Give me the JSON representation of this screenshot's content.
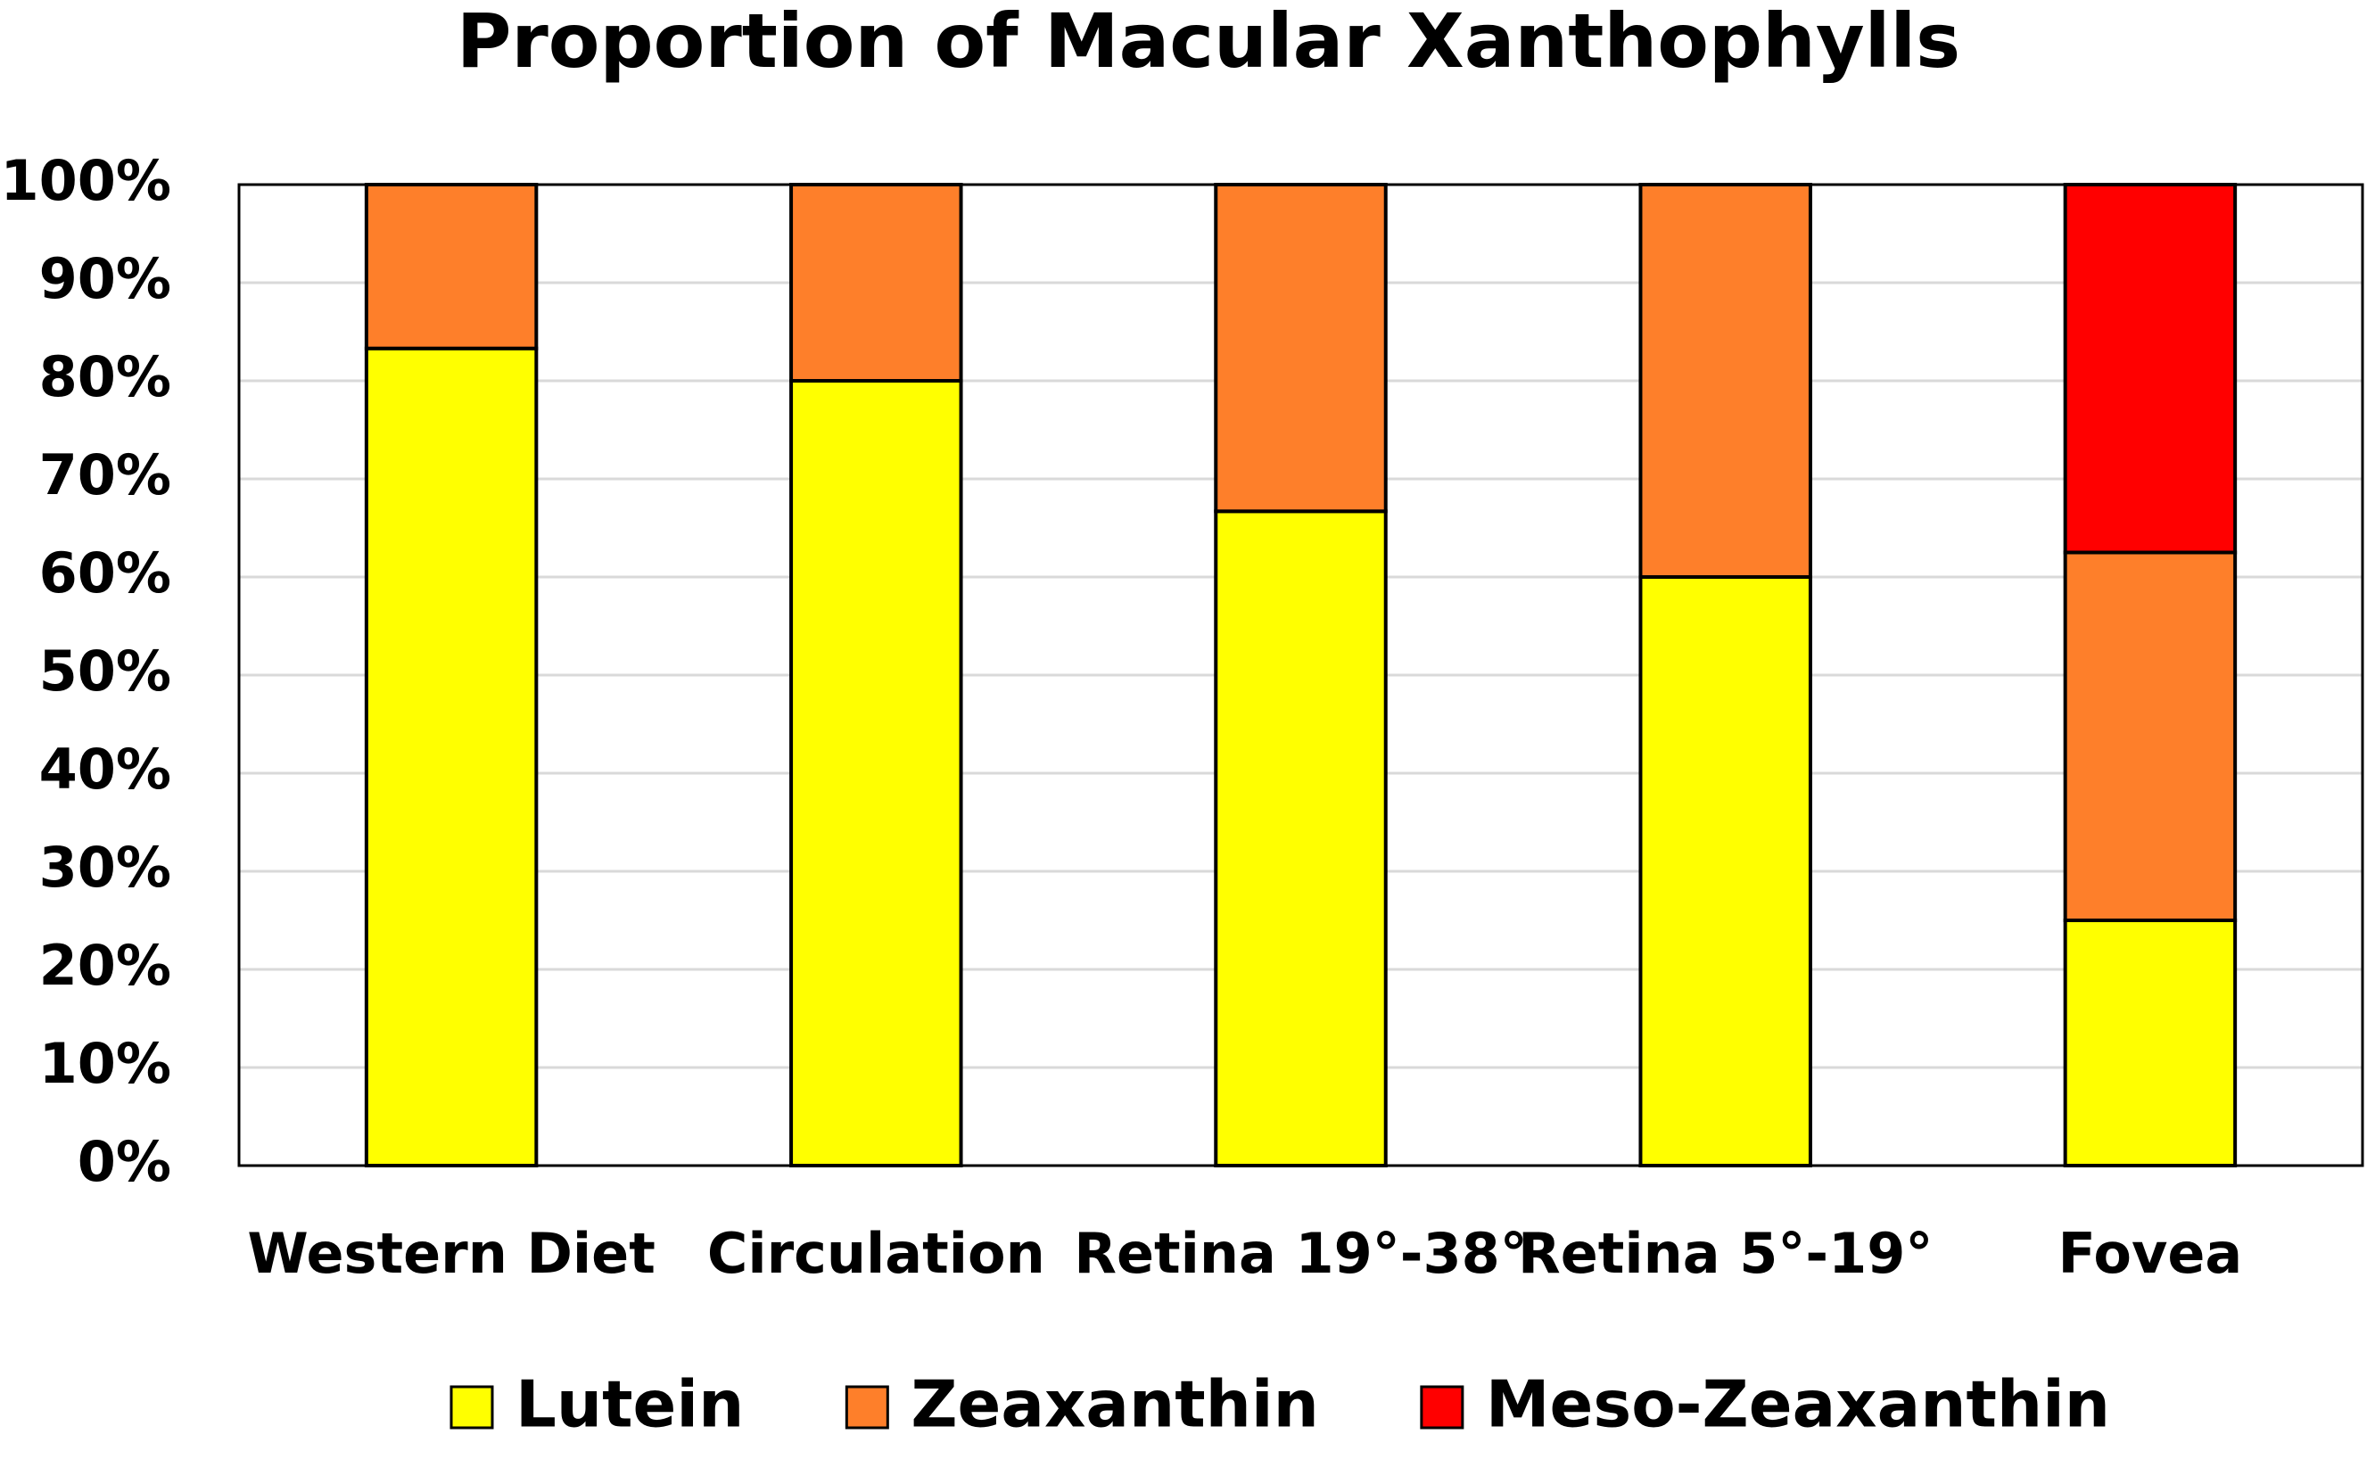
{
  "chart_data": {
    "type": "stacked_bar",
    "title": "Proportion of Macular Xanthophylls",
    "categories": [
      "Western Diet",
      "Circulation",
      "Retina 19°-38°",
      "Retina 5°-19°",
      "Fovea"
    ],
    "series": [
      {
        "name": "Lutein",
        "color": "#ffff00",
        "values": [
          83.3,
          80,
          66.7,
          60,
          25
        ]
      },
      {
        "name": "Zeaxanthin",
        "color": "#fe7f2a",
        "values": [
          16.7,
          20,
          33.3,
          40,
          37.5
        ]
      },
      {
        "name": "Meso-Zeaxanthin",
        "color": "#ff0000",
        "values": [
          0,
          0,
          0,
          0,
          37.5
        ]
      }
    ],
    "ylim": [
      0,
      100
    ],
    "yticks": [
      {
        "value": 0,
        "label": "0%"
      },
      {
        "value": 10,
        "label": "10%"
      },
      {
        "value": 20,
        "label": "20%"
      },
      {
        "value": 30,
        "label": "30%"
      },
      {
        "value": 40,
        "label": "40%"
      },
      {
        "value": 50,
        "label": "50%"
      },
      {
        "value": 60,
        "label": "60%"
      },
      {
        "value": 70,
        "label": "70%"
      },
      {
        "value": 80,
        "label": "80%"
      },
      {
        "value": 90,
        "label": "90%"
      },
      {
        "value": 100,
        "label": "100%"
      }
    ],
    "grid": true,
    "legend": "bottom"
  }
}
